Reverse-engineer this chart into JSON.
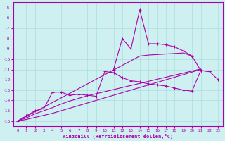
{
  "x_values": [
    0,
    1,
    2,
    3,
    4,
    5,
    6,
    7,
    8,
    9,
    10,
    11,
    12,
    13,
    14,
    15,
    16,
    17,
    18,
    19,
    20,
    21,
    22,
    23
  ],
  "line1_main": [
    -16.0,
    -15.5,
    -15.0,
    -14.8,
    -13.2,
    -13.2,
    -13.5,
    -13.4,
    -13.5,
    -13.6,
    -11.2,
    -11.3,
    -11.8,
    -12.1,
    -12.2,
    -12.4,
    -12.5,
    -12.6,
    -12.8,
    -13.0,
    -13.1,
    -11.1,
    -11.2,
    -12.0
  ],
  "line2_upper_straight": [
    -16.0,
    -15.55,
    -15.1,
    -14.65,
    -14.2,
    -13.75,
    -13.3,
    -12.85,
    -12.4,
    -11.95,
    -11.5,
    -11.05,
    -10.6,
    -10.15,
    -9.7,
    -9.6,
    -9.55,
    -9.5,
    -9.45,
    -9.4,
    -9.7,
    -9.75,
    -11.1,
    -11.2
  ],
  "line3_mid_straight": [
    -16.0,
    -15.7,
    -15.3,
    -15.0,
    -14.7,
    -14.35,
    -14.05,
    -13.8,
    -13.55,
    -13.35,
    -13.15,
    -12.95,
    -12.75,
    -12.55,
    -12.35,
    -12.15,
    -11.95,
    -11.75,
    -11.55,
    -11.35,
    -11.15,
    -10.95,
    -11.6,
    -12.0
  ],
  "line4_lower_straight": [
    -16.0,
    -15.85,
    -15.65,
    -15.45,
    -15.25,
    -15.0,
    -14.75,
    -14.5,
    -14.25,
    -14.0,
    -13.75,
    -13.5,
    -13.25,
    -13.0,
    -12.75,
    -12.5,
    -12.25,
    -12.0,
    -11.75,
    -11.5,
    -11.25,
    -11.0,
    -11.6,
    -12.0
  ],
  "line5_zigzag_x": [
    11,
    12,
    13,
    14,
    15,
    16,
    17,
    18,
    19,
    20,
    21,
    22
  ],
  "line5_zigzag_y": [
    -11.0,
    -8.0,
    -9.0,
    -5.2,
    -8.5,
    -8.5,
    -8.6,
    -8.8,
    -9.2,
    -9.7,
    -11.1,
    -11.2
  ],
  "background_color": "#cff0f0",
  "grid_color": "#aadddd",
  "line_color": "#aa00aa",
  "xlabel": "Windchill (Refroidissement éolien,°C)",
  "ylim": [
    -16.5,
    -4.5
  ],
  "xlim": [
    -0.5,
    23.5
  ],
  "yticks": [
    -5,
    -6,
    -7,
    -8,
    -9,
    -10,
    -11,
    -12,
    -13,
    -14,
    -15,
    -16
  ],
  "xticks": [
    0,
    1,
    2,
    3,
    4,
    5,
    6,
    7,
    8,
    9,
    10,
    11,
    12,
    13,
    14,
    15,
    16,
    17,
    18,
    19,
    20,
    21,
    22,
    23
  ]
}
